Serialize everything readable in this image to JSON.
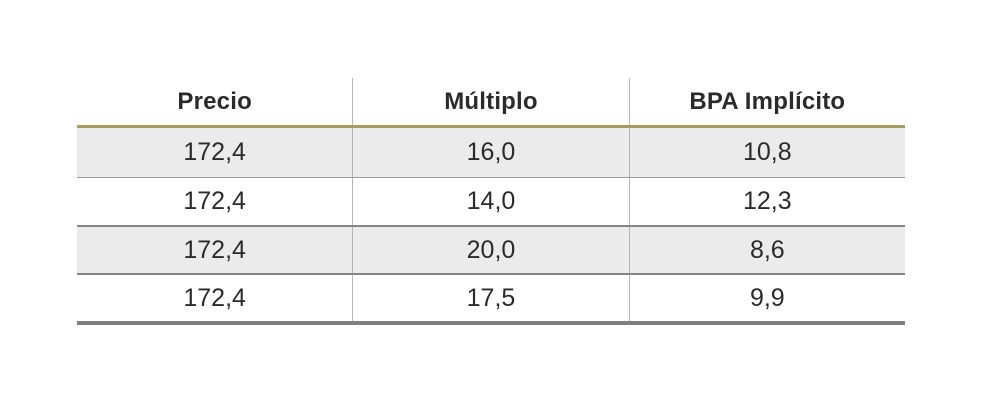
{
  "table": {
    "headers": [
      "Precio",
      "Múltiplo",
      "BPA Implícito"
    ],
    "rows": [
      [
        "172,4",
        "16,0",
        "10,8"
      ],
      [
        "172,4",
        "14,0",
        "12,3"
      ],
      [
        "172,4",
        "20,0",
        "8,6"
      ],
      [
        "172,4",
        "17,5",
        "9,9"
      ]
    ],
    "colors": {
      "header_rule": "#A69B63",
      "row_shade": "#EBEBEB",
      "row_divider": "#858585",
      "light_row_divider": "#9C9C9C",
      "column_divider": "#B5B5B5",
      "bottom_rule": "#7F7F7F",
      "text": "#2B2B2B",
      "background": "#FFFFFF"
    }
  },
  "chart_data": {
    "type": "table",
    "title": "",
    "columns": [
      "Precio",
      "Múltiplo",
      "BPA Implícito"
    ],
    "rows": [
      {
        "precio": 172.4,
        "multiplo": 16.0,
        "bpa_implicito": 10.8
      },
      {
        "precio": 172.4,
        "multiplo": 14.0,
        "bpa_implicito": 12.3
      },
      {
        "precio": 172.4,
        "multiplo": 20.0,
        "bpa_implicito": 8.6
      },
      {
        "precio": 172.4,
        "multiplo": 17.5,
        "bpa_implicito": 9.9
      }
    ],
    "notes": "Decimal comma formatting (es locale); shaded zebra rows 1 and 3; gold rule under header; thick gray rule at table bottom"
  }
}
